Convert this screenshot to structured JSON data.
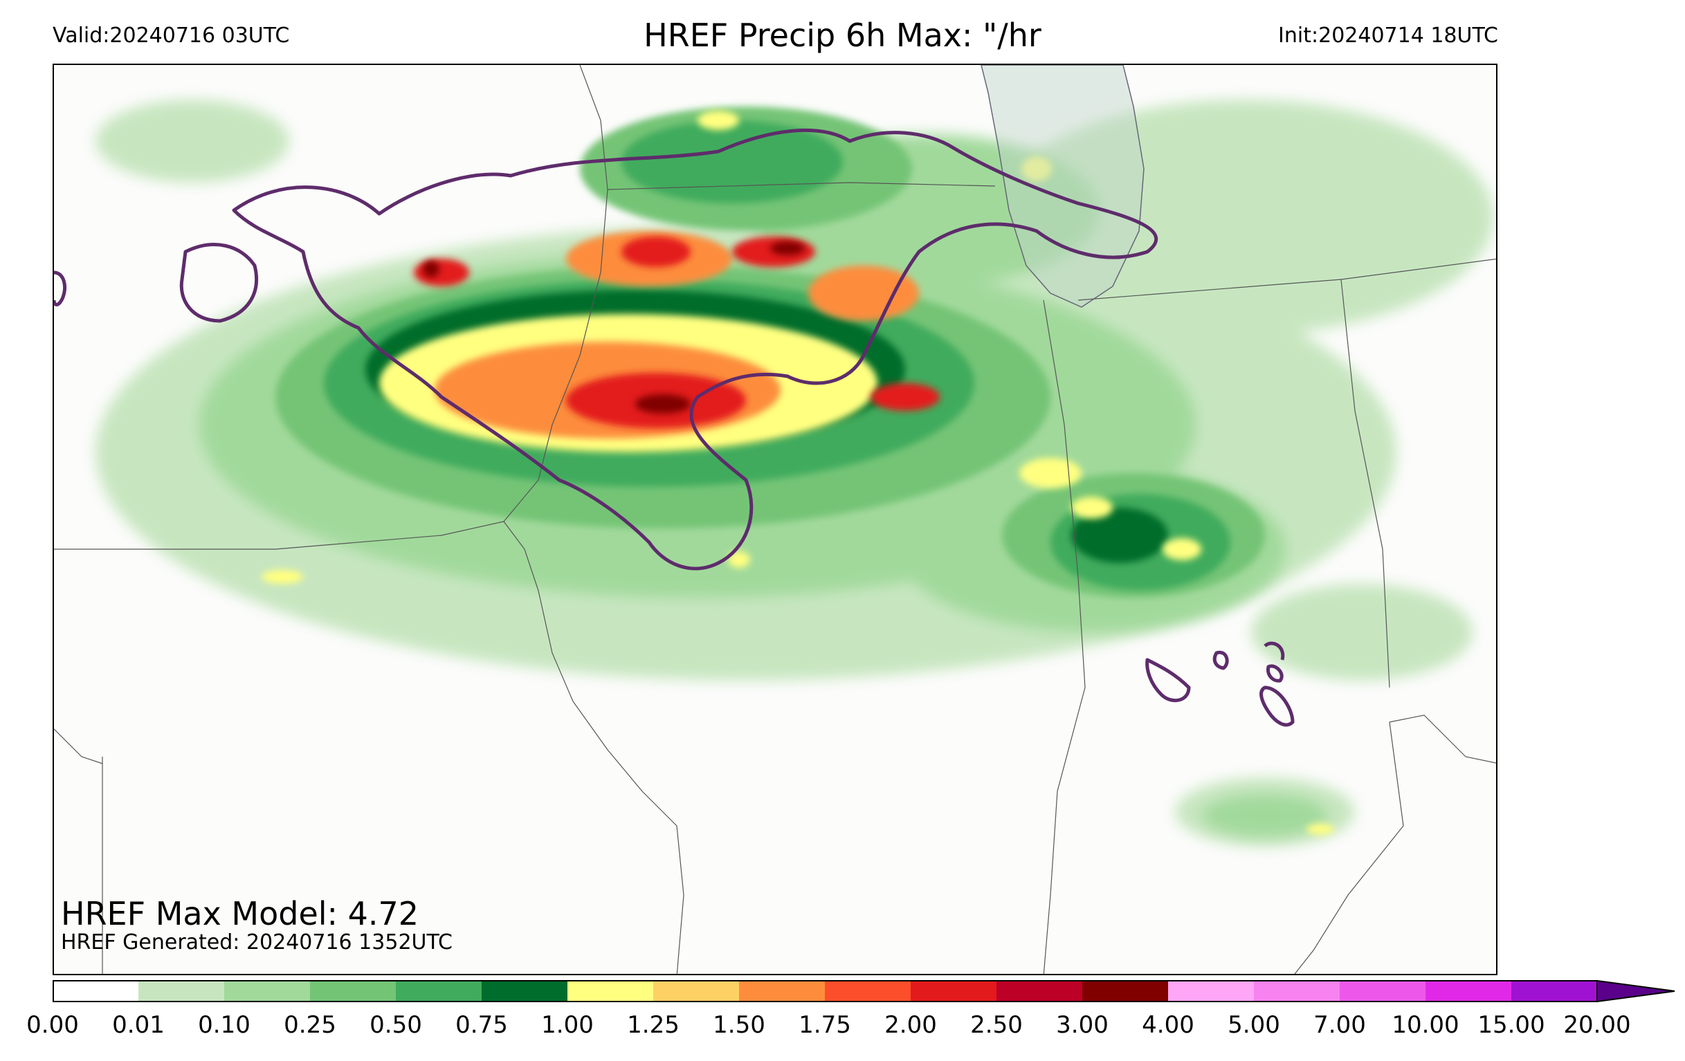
{
  "header": {
    "valid": "Valid:20240716 03UTC",
    "title": "HREF Precip 6h Max: \"/hr",
    "init": "Init:20240714 18UTC"
  },
  "footer": {
    "max_model": "HREF Max Model: 4.72",
    "generated": "HREF Generated: 20240716 1352UTC"
  },
  "colorbar": {
    "levels": [
      "0.00",
      "0.01",
      "0.10",
      "0.25",
      "0.50",
      "0.75",
      "1.00",
      "1.25",
      "1.50",
      "1.75",
      "2.00",
      "2.50",
      "3.00",
      "4.00",
      "5.00",
      "7.00",
      "10.00",
      "15.00",
      "20.00"
    ],
    "colors": [
      "#ffffff",
      "#c7e6c0",
      "#a1d99b",
      "#74c476",
      "#41ab5d",
      "#006d2c",
      "#ffff80",
      "#fed165",
      "#fd8d3c",
      "#fc4e2a",
      "#e31a1c",
      "#bd0026",
      "#800000",
      "#ffa6f7",
      "#f783f0",
      "#ed58ea",
      "#e029e6",
      "#a012d1"
    ],
    "extend_color": "#5a008a"
  },
  "legend_colors": {
    "contour": "#5e2c6b",
    "lake": "#bfd5c8",
    "border": "#555555"
  }
}
